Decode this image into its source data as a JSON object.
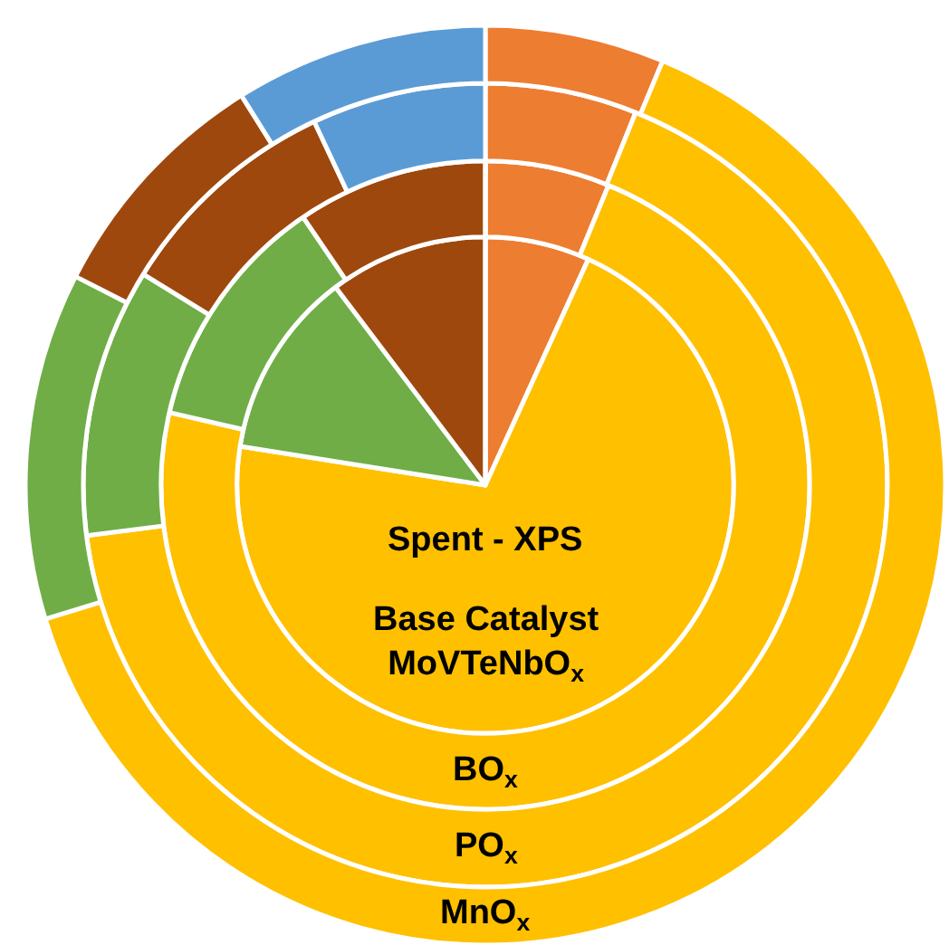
{
  "chart_data": {
    "type": "donut",
    "title": "Spent - XPS",
    "categories": [
      null,
      null,
      null,
      null,
      null
    ],
    "colors": [
      "#ed7d31",
      "#ffc000",
      "#70ad47",
      "#9e480e",
      "#5b9bd5"
    ],
    "series": [
      {
        "type": "pie",
        "name": "Base Catalyst\nMoVTeNbO$_{x}$",
        "values": [
          6.8,
          70.7,
          12.2,
          10.3,
          null
        ]
      },
      {
        "name": "BO$_{x}$",
        "values": [
          6.2,
          72.4,
          11.9,
          9.5,
          null
        ]
      },
      {
        "name": "PO$_{x}$",
        "values": [
          6.1,
          66.9,
          10.8,
          9.2,
          7.0
        ]
      },
      {
        "name": "MnO$_{x}$",
        "values": [
          6.3,
          64.0,
          12.2,
          8.6,
          8.9
        ]
      }
    ]
  }
}
